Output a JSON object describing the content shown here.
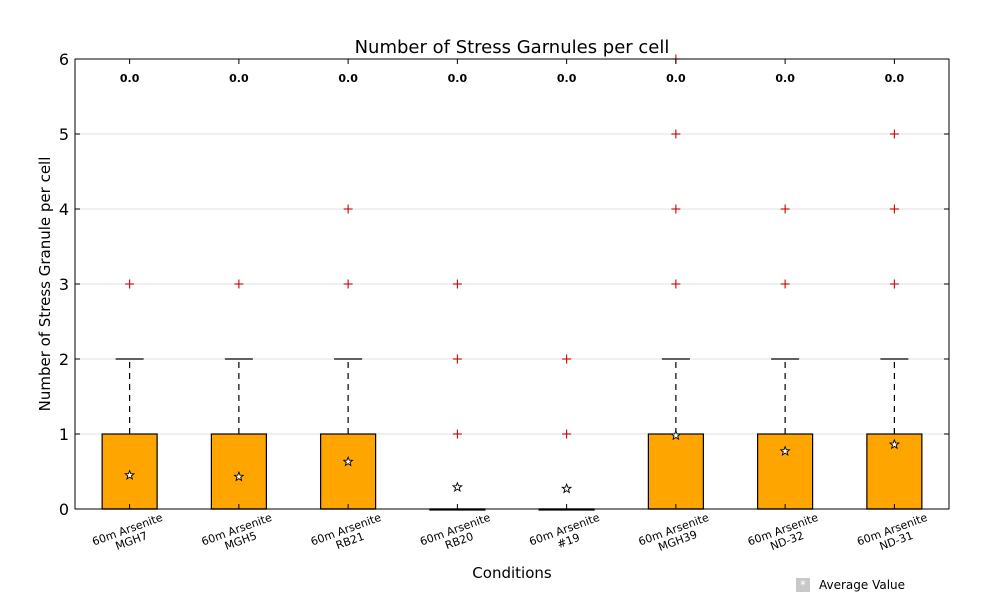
{
  "chart_data": {
    "type": "box",
    "title": "Number of Stress Garnules per cell",
    "xlabel": "Conditions",
    "ylabel": "Number of Stress Granule per cell",
    "ylim": [
      0,
      6
    ],
    "yticks": [
      "0",
      "1",
      "2",
      "3",
      "4",
      "5",
      "6"
    ],
    "grid": "horizontal",
    "colors": {
      "box": "#FFA500",
      "outlier": "#cc0000",
      "whisker": "#000000",
      "grid": "#e0e0e0"
    },
    "categories": [
      [
        "60m Arsenite",
        "MGH7"
      ],
      [
        "60m Arsenite",
        "MGH5"
      ],
      [
        "60m Arsenite",
        "RB21"
      ],
      [
        "60m Arsenite",
        "RB20"
      ],
      [
        "60m Arsenite",
        "#19"
      ],
      [
        "60m Arsenite",
        "MGH39"
      ],
      [
        "60m Arsenite",
        "ND-32"
      ],
      [
        "60m Arsenite",
        "ND-31"
      ]
    ],
    "top_labels": [
      "0.0",
      "0.0",
      "0.0",
      "0.0",
      "0.0",
      "0.0",
      "0.0",
      "0.0"
    ],
    "boxes": [
      {
        "q1": 0,
        "median": 0,
        "q3": 1,
        "whisker_low": 0,
        "whisker_high": 2,
        "mean": 0.45,
        "outliers": [
          3
        ]
      },
      {
        "q1": 0,
        "median": 0,
        "q3": 1,
        "whisker_low": 0,
        "whisker_high": 2,
        "mean": 0.43,
        "outliers": [
          3
        ]
      },
      {
        "q1": 0,
        "median": 0,
        "q3": 1,
        "whisker_low": 0,
        "whisker_high": 2,
        "mean": 0.63,
        "outliers": [
          3,
          4
        ]
      },
      {
        "q1": 0,
        "median": 0,
        "q3": 0,
        "whisker_low": 0,
        "whisker_high": 0,
        "mean": 0.29,
        "outliers": [
          1,
          2,
          3
        ]
      },
      {
        "q1": 0,
        "median": 0,
        "q3": 0,
        "whisker_low": 0,
        "whisker_high": 0,
        "mean": 0.27,
        "outliers": [
          1,
          2
        ]
      },
      {
        "q1": 0,
        "median": 0,
        "q3": 1,
        "whisker_low": 0,
        "whisker_high": 2,
        "mean": 0.98,
        "outliers": [
          3,
          4,
          5,
          6
        ]
      },
      {
        "q1": 0,
        "median": 0,
        "q3": 1,
        "whisker_low": 0,
        "whisker_high": 2,
        "mean": 0.77,
        "outliers": [
          3,
          4
        ]
      },
      {
        "q1": 0,
        "median": 0,
        "q3": 1,
        "whisker_low": 0,
        "whisker_high": 2,
        "mean": 0.86,
        "outliers": [
          3,
          4,
          5
        ]
      }
    ]
  },
  "legend": {
    "marker": "*",
    "label": "Average Value"
  }
}
